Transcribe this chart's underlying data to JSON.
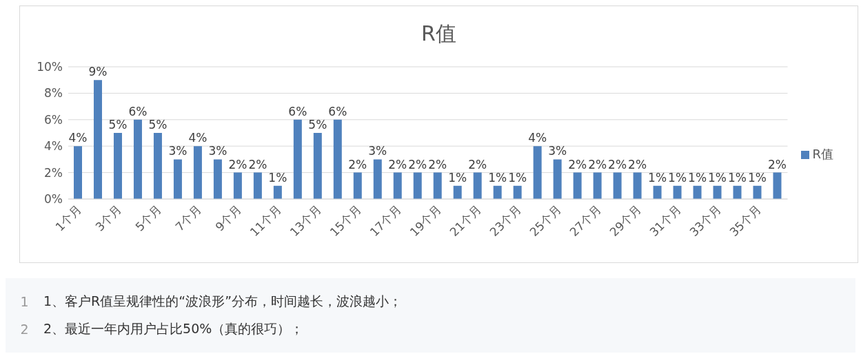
{
  "chart_data": {
    "type": "bar",
    "title": "R值",
    "categories": [
      "1个月",
      null,
      "3个月",
      null,
      "5个月",
      null,
      "7个月",
      null,
      "9个月",
      null,
      "11个月",
      null,
      "13个月",
      null,
      "15个月",
      null,
      "17个月",
      null,
      "19个月",
      null,
      "21个月",
      null,
      "23个月",
      null,
      "25个月",
      null,
      "27个月",
      null,
      "29个月",
      null,
      "31个月",
      null,
      "33个月",
      null,
      "35个月",
      null
    ],
    "series": [
      {
        "name": "R值",
        "color": "#4f81bd",
        "values": [
          4,
          9,
          5,
          6,
          5,
          3,
          4,
          3,
          2,
          2,
          1,
          6,
          5,
          6,
          2,
          3,
          2,
          2,
          2,
          1,
          2,
          1,
          1,
          4,
          3,
          2,
          2,
          2,
          2,
          1,
          1,
          1,
          1,
          1,
          1,
          2
        ],
        "value_labels": [
          "4%",
          "9%",
          "5%",
          "6%",
          "5%",
          "3%",
          "4%",
          "3%",
          "2%",
          "2%",
          "1%",
          "6%",
          "5%",
          "6%",
          "2%",
          "3%",
          "2%",
          "2%",
          "2%",
          "1%",
          "2%",
          "1%",
          "1%",
          "4%",
          "3%",
          "2%",
          "2%",
          "2%",
          "2%",
          "1%",
          "1%",
          "1%",
          "1%",
          "1%",
          "1%",
          "2%"
        ]
      }
    ],
    "ylim": [
      0,
      10
    ],
    "yticks": [
      {
        "value": 0,
        "label": "0%"
      },
      {
        "value": 2,
        "label": "2%"
      },
      {
        "value": 4,
        "label": "4%"
      },
      {
        "value": 6,
        "label": "6%"
      },
      {
        "value": 8,
        "label": "8%"
      },
      {
        "value": 10,
        "label": "10%"
      }
    ],
    "grid": "y",
    "legend": "right",
    "annotations": [
      "1",
      "1、客户R值呈规律性的“波浪形”分布，时间越长，波浪越小；",
      "2",
      "2、最近一年内用户占比50%（真的很巧）；"
    ]
  }
}
